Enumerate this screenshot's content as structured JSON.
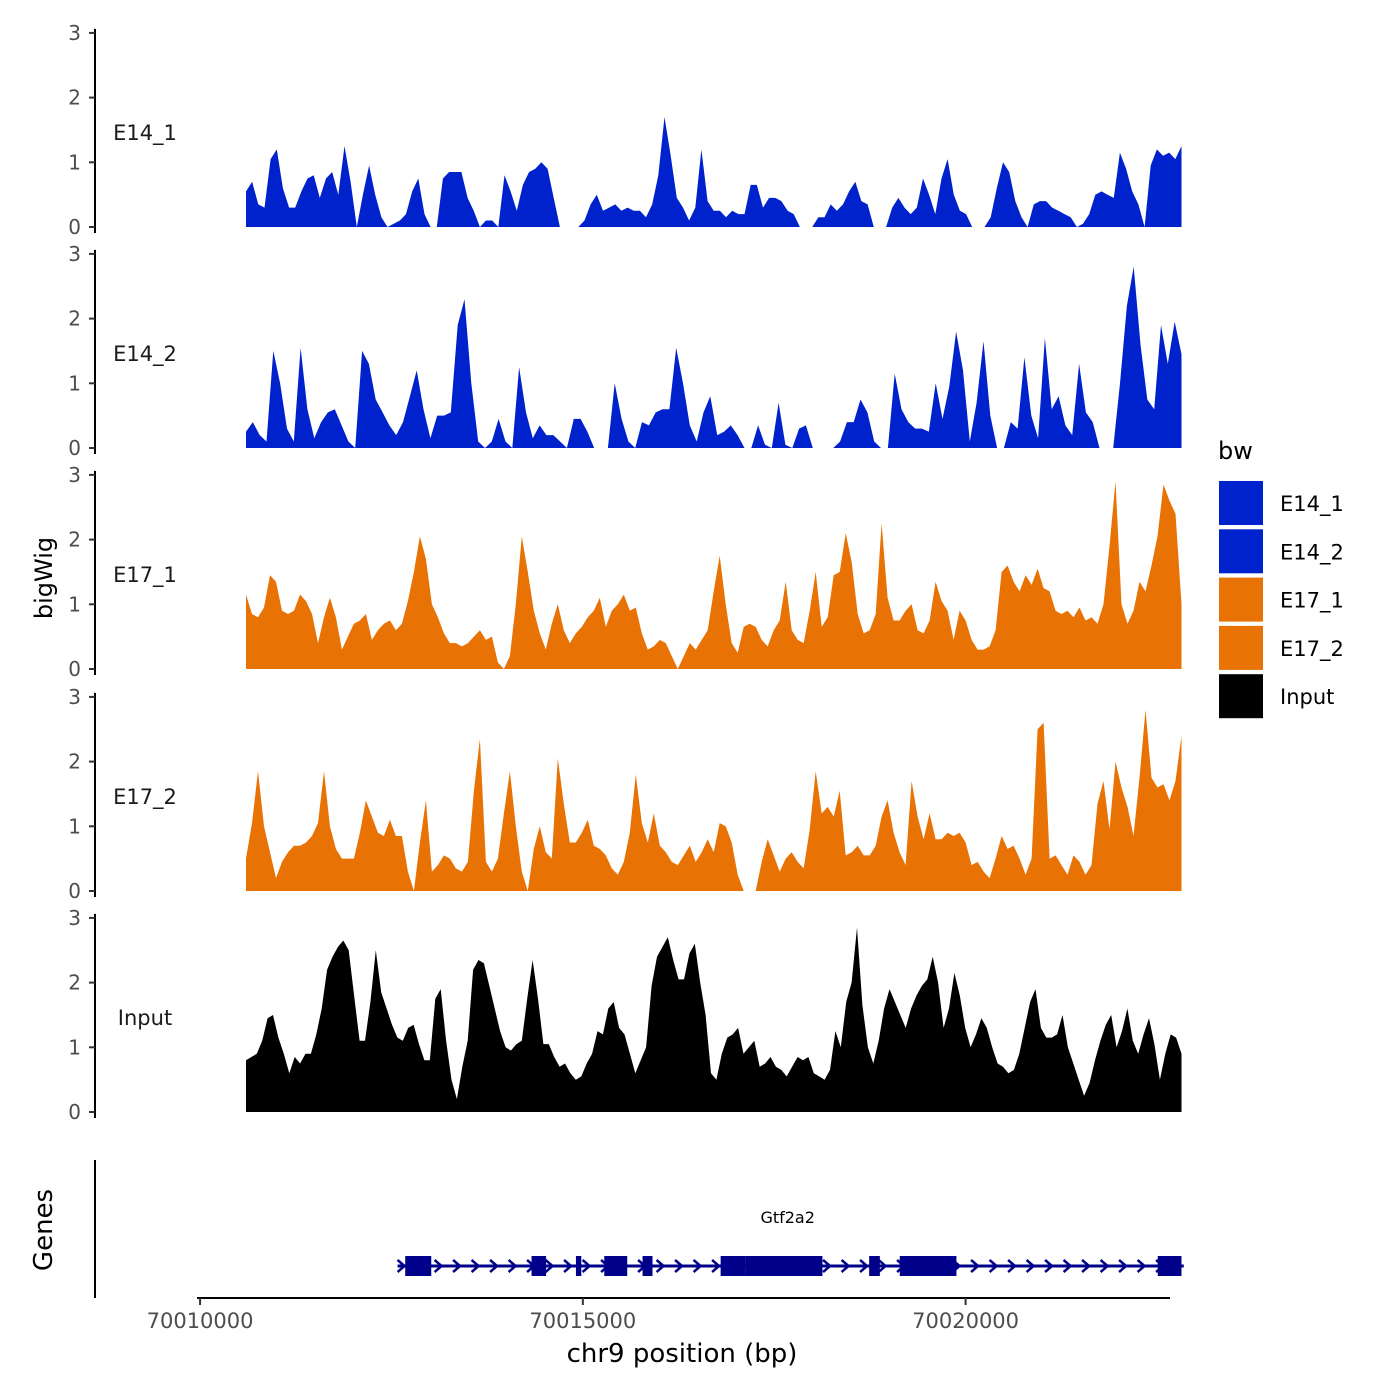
{
  "chart_data": {
    "type": "area",
    "ylabel": "bigWig",
    "genes_label": "Genes",
    "xlabel": "chr9 position (bp)",
    "ylim": [
      0,
      3
    ],
    "y_ticks": [
      "0",
      "1",
      "2",
      "3"
    ],
    "xlim": [
      70009960,
      70022670
    ],
    "x_ticks": [
      {
        "value": 70010000,
        "label": "70010000"
      },
      {
        "value": 70015000,
        "label": "70015000"
      },
      {
        "value": 70020000,
        "label": "70020000"
      }
    ],
    "data_range": [
      70010600,
      70022820
    ],
    "legend": {
      "title": "bw",
      "placement": "right",
      "entries": [
        {
          "label": "E14_1",
          "color": "#0022CC"
        },
        {
          "label": "E14_2",
          "color": "#0022CC"
        },
        {
          "label": "E17_1",
          "color": "#E87203"
        },
        {
          "label": "E17_2",
          "color": "#E87203"
        },
        {
          "label": "Input",
          "color": "#000000"
        }
      ]
    },
    "series": [
      {
        "name": "E14_1",
        "color": "#0022CC",
        "values": [
          0.55,
          0.7,
          0.35,
          0.3,
          1.05,
          1.2,
          0.6,
          0.3,
          0.3,
          0.55,
          0.75,
          0.8,
          0.45,
          0.75,
          0.85,
          0.5,
          1.25,
          0.7,
          0,
          0.5,
          0.95,
          0.5,
          0.15,
          0,
          0.05,
          0.1,
          0.2,
          0.55,
          0.75,
          0.2,
          0,
          0,
          0.75,
          0.85,
          0.85,
          0.85,
          0.45,
          0.25,
          0,
          0.1,
          0.1,
          0,
          0.8,
          0.55,
          0.25,
          0.65,
          0.85,
          0.9,
          1.0,
          0.9,
          0.45,
          0,
          0,
          0,
          0,
          0.1,
          0.35,
          0.5,
          0.25,
          0.3,
          0.35,
          0.25,
          0.3,
          0.25,
          0.25,
          0.15,
          0.35,
          0.8,
          1.7,
          1.1,
          0.45,
          0.3,
          0.1,
          0.3,
          1.2,
          0.4,
          0.25,
          0.25,
          0.15,
          0.25,
          0.2,
          0.2,
          0.65,
          0.65,
          0.3,
          0.45,
          0.45,
          0.4,
          0.25,
          0.2,
          0,
          0,
          0,
          0.15,
          0.15,
          0.35,
          0.25,
          0.35,
          0.55,
          0.7,
          0.4,
          0.35,
          0,
          0,
          0,
          0.3,
          0.45,
          0.3,
          0.2,
          0.3,
          0.75,
          0.5,
          0.2,
          0.75,
          1.05,
          0.5,
          0.25,
          0.2,
          0,
          0,
          0,
          0.15,
          0.6,
          1.0,
          0.85,
          0.4,
          0.15,
          0,
          0.35,
          0.4,
          0.4,
          0.3,
          0.25,
          0.2,
          0.15,
          0,
          0.05,
          0.2,
          0.5,
          0.55,
          0.5,
          0.45,
          1.15,
          0.9,
          0.55,
          0.35,
          0,
          0.95,
          1.2,
          1.1,
          1.15,
          1.05,
          1.25
        ]
      },
      {
        "name": "E14_2",
        "color": "#0022CC",
        "values": [
          0.25,
          0.4,
          0.2,
          0.1,
          1.5,
          1.0,
          0.3,
          0.1,
          1.55,
          0.6,
          0.15,
          0.4,
          0.55,
          0.6,
          0.35,
          0.1,
          0,
          1.5,
          1.3,
          0.75,
          0.55,
          0.35,
          0.2,
          0.4,
          0.8,
          1.2,
          0.6,
          0.15,
          0.5,
          0.5,
          0.55,
          1.9,
          2.3,
          1.0,
          0.1,
          0,
          0.1,
          0.45,
          0.1,
          0,
          1.25,
          0.55,
          0.15,
          0.35,
          0.2,
          0.2,
          0.1,
          0,
          0.45,
          0.45,
          0.25,
          0,
          0,
          0,
          1.0,
          0.45,
          0.1,
          0,
          0.4,
          0.35,
          0.55,
          0.6,
          0.6,
          1.55,
          1.0,
          0.35,
          0.1,
          0.55,
          0.8,
          0.2,
          0.25,
          0.35,
          0.2,
          0,
          0,
          0.35,
          0.05,
          0,
          0.7,
          0.05,
          0,
          0.3,
          0.35,
          0,
          0,
          0,
          0,
          0.1,
          0.4,
          0.4,
          0.75,
          0.55,
          0.1,
          0,
          0,
          1.15,
          0.6,
          0.4,
          0.3,
          0.3,
          0.25,
          1.0,
          0.45,
          0.95,
          1.8,
          1.2,
          0.1,
          0.7,
          1.65,
          0.5,
          0,
          0,
          0.4,
          0.3,
          1.4,
          0.5,
          0.15,
          1.7,
          0.6,
          0.8,
          0.35,
          0.2,
          1.3,
          0.55,
          0.4,
          0,
          0,
          0,
          1.0,
          2.2,
          2.8,
          1.6,
          0.75,
          0.6,
          1.9,
          1.3,
          1.95,
          1.45
        ]
      },
      {
        "name": "E17_1",
        "color": "#E87203",
        "values": [
          1.15,
          0.85,
          0.8,
          0.95,
          1.45,
          1.35,
          0.9,
          0.85,
          0.9,
          1.15,
          1.05,
          0.85,
          0.4,
          0.8,
          1.1,
          0.8,
          0.3,
          0.5,
          0.7,
          0.75,
          0.85,
          0.45,
          0.6,
          0.7,
          0.75,
          0.6,
          0.7,
          1.05,
          1.5,
          2.05,
          1.7,
          1.0,
          0.8,
          0.55,
          0.4,
          0.4,
          0.35,
          0.4,
          0.5,
          0.6,
          0.45,
          0.5,
          0.1,
          0,
          0.2,
          1.0,
          2.05,
          1.5,
          0.9,
          0.55,
          0.3,
          0.7,
          1.0,
          0.6,
          0.4,
          0.55,
          0.65,
          0.8,
          0.9,
          1.1,
          0.65,
          0.9,
          1.0,
          1.15,
          0.9,
          0.95,
          0.55,
          0.3,
          0.35,
          0.45,
          0.4,
          0.2,
          0,
          0.2,
          0.4,
          0.3,
          0.45,
          0.6,
          1.2,
          1.75,
          1.0,
          0.4,
          0.25,
          0.65,
          0.7,
          0.65,
          0.45,
          0.35,
          0.6,
          0.75,
          1.35,
          0.6,
          0.45,
          0.4,
          0.9,
          1.5,
          0.65,
          0.8,
          1.45,
          1.5,
          2.1,
          1.65,
          0.85,
          0.55,
          0.6,
          0.85,
          2.25,
          1.1,
          0.75,
          0.75,
          0.9,
          1.0,
          0.6,
          0.55,
          0.75,
          1.35,
          1.05,
          0.9,
          0.45,
          0.9,
          0.75,
          0.45,
          0.3,
          0.3,
          0.35,
          0.6,
          1.5,
          1.6,
          1.35,
          1.2,
          1.45,
          1.3,
          1.55,
          1.25,
          1.2,
          0.9,
          0.85,
          0.9,
          0.8,
          0.95,
          0.75,
          0.8,
          0.7,
          1.0,
          1.9,
          2.9,
          1.0,
          0.7,
          0.9,
          1.35,
          1.2,
          1.6,
          2.05,
          2.85,
          2.6,
          2.4,
          1.0
        ]
      },
      {
        "name": "E17_2",
        "color": "#E87203",
        "values": [
          0.5,
          1.05,
          1.85,
          1.0,
          0.6,
          0.2,
          0.45,
          0.6,
          0.7,
          0.7,
          0.75,
          0.85,
          1.05,
          1.85,
          1.0,
          0.65,
          0.5,
          0.5,
          0.5,
          0.9,
          1.4,
          1.15,
          0.9,
          0.85,
          1.1,
          0.85,
          0.85,
          0.3,
          0,
          0.75,
          1.4,
          0.3,
          0.4,
          0.55,
          0.5,
          0.35,
          0.3,
          0.45,
          1.55,
          2.35,
          0.45,
          0.3,
          0.5,
          1.2,
          1.85,
          1.0,
          0.3,
          0,
          0.65,
          1.0,
          0.6,
          0.5,
          2.05,
          1.35,
          0.75,
          0.75,
          0.9,
          1.1,
          0.7,
          0.65,
          0.55,
          0.35,
          0.25,
          0.45,
          0.9,
          1.8,
          1.05,
          0.75,
          1.2,
          0.7,
          0.6,
          0.45,
          0.4,
          0.55,
          0.7,
          0.45,
          0.6,
          0.8,
          0.6,
          1.05,
          1.0,
          0.75,
          0.25,
          0,
          0,
          0,
          0.45,
          0.8,
          0.55,
          0.3,
          0.5,
          0.6,
          0.45,
          0.35,
          0.95,
          1.85,
          1.2,
          1.3,
          1.15,
          1.55,
          0.55,
          0.6,
          0.7,
          0.55,
          0.55,
          0.7,
          1.15,
          1.4,
          0.9,
          0.6,
          0.4,
          1.7,
          1.15,
          0.8,
          1.2,
          0.8,
          0.8,
          0.9,
          0.85,
          0.9,
          0.75,
          0.4,
          0.45,
          0.3,
          0.2,
          0.5,
          0.85,
          0.65,
          0.7,
          0.5,
          0.25,
          0.5,
          2.5,
          2.6,
          0.5,
          0.55,
          0.4,
          0.25,
          0.55,
          0.45,
          0.25,
          0.4,
          1.35,
          1.7,
          0.95,
          2.0,
          1.6,
          1.3,
          0.85,
          1.75,
          2.8,
          1.75,
          1.6,
          1.65,
          1.4,
          1.7,
          2.4
        ]
      },
      {
        "name": "Input",
        "color": "#000000",
        "values": [
          0.8,
          0.85,
          0.9,
          1.1,
          1.45,
          1.5,
          1.15,
          0.9,
          0.6,
          0.85,
          0.75,
          0.9,
          0.9,
          1.2,
          1.6,
          2.2,
          2.4,
          2.55,
          2.65,
          2.5,
          1.8,
          1.1,
          1.1,
          1.7,
          2.5,
          1.85,
          1.6,
          1.35,
          1.15,
          1.1,
          1.3,
          1.35,
          1.05,
          0.8,
          0.8,
          1.75,
          1.9,
          1.1,
          0.5,
          0.2,
          0.7,
          1.1,
          2.2,
          2.35,
          2.3,
          1.95,
          1.6,
          1.25,
          1.0,
          0.95,
          1.05,
          1.1,
          1.75,
          2.35,
          1.75,
          1.05,
          1.05,
          0.85,
          0.7,
          0.75,
          0.6,
          0.5,
          0.55,
          0.75,
          0.9,
          1.25,
          1.2,
          1.6,
          1.7,
          1.3,
          1.2,
          0.9,
          0.6,
          0.8,
          1.0,
          1.95,
          2.4,
          2.55,
          2.7,
          2.35,
          2.05,
          2.05,
          2.45,
          2.6,
          2.0,
          1.5,
          0.6,
          0.5,
          0.9,
          1.15,
          1.2,
          1.3,
          0.9,
          1.0,
          1.1,
          0.7,
          0.75,
          0.85,
          0.7,
          0.65,
          0.55,
          0.7,
          0.85,
          0.8,
          0.85,
          0.6,
          0.55,
          0.5,
          0.65,
          1.25,
          1.0,
          1.7,
          2.0,
          2.85,
          1.65,
          1.0,
          0.75,
          1.1,
          1.6,
          1.9,
          1.7,
          1.5,
          1.3,
          1.6,
          1.8,
          1.95,
          2.05,
          2.4,
          2.0,
          1.3,
          1.6,
          2.15,
          1.8,
          1.3,
          1.0,
          1.2,
          1.45,
          1.3,
          1.0,
          0.75,
          0.7,
          0.6,
          0.65,
          0.9,
          1.3,
          1.7,
          1.9,
          1.3,
          1.15,
          1.15,
          1.2,
          1.5,
          1.0,
          0.75,
          0.5,
          0.25,
          0.45,
          0.8,
          1.1,
          1.35,
          1.5,
          1.0,
          1.25,
          1.6,
          1.1,
          0.9,
          1.2,
          1.45,
          1.05,
          0.5,
          0.9,
          1.2,
          1.15,
          0.9
        ]
      }
    ],
    "gene": {
      "name": "Gtf2a2",
      "color": "#00008B",
      "start": 70012580,
      "end": 70022850,
      "exons": [
        {
          "start": 70012680,
          "end": 70013020
        },
        {
          "start": 70014330,
          "end": 70014520
        },
        {
          "start": 70014910,
          "end": 70014980
        },
        {
          "start": 70015280,
          "end": 70015580
        },
        {
          "start": 70015780,
          "end": 70015910
        },
        {
          "start": 70016800,
          "end": 70017130
        },
        {
          "start": 70017130,
          "end": 70018130
        },
        {
          "start": 70018740,
          "end": 70018880
        },
        {
          "start": 70019140,
          "end": 70019880
        },
        {
          "start": 70022510,
          "end": 70022820
        }
      ]
    }
  }
}
